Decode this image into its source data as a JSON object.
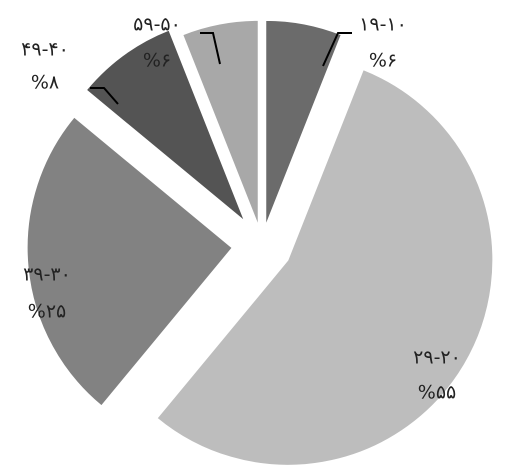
{
  "chart_data": {
    "type": "pie",
    "title": "",
    "exploded": true,
    "direction": "clockwise",
    "start_angle_deg": -90,
    "slices": [
      {
        "category": "۱۹-۱۰",
        "value": 6,
        "value_label": "%۶",
        "color": "#6b6b6b"
      },
      {
        "category": "۲۹-۲۰",
        "value": 55,
        "value_label": "%۵۵",
        "color": "#bdbdbd"
      },
      {
        "category": "۳۹-۳۰",
        "value": 25,
        "value_label": "%۲۵",
        "color": "#828282"
      },
      {
        "category": "۴۹-۴۰",
        "value": 8,
        "value_label": "%۸",
        "color": "#545454"
      },
      {
        "category": "۵۹-۵۰",
        "value": 6,
        "value_label": "%۶",
        "color": "#a8a8a8"
      }
    ]
  }
}
